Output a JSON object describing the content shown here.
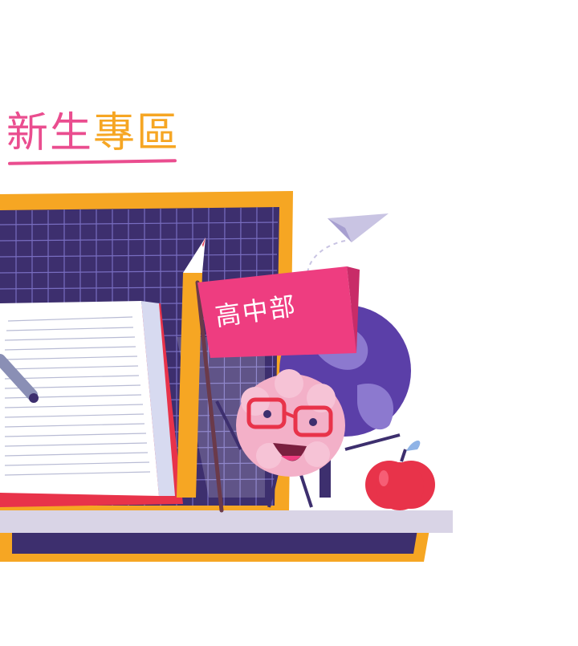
{
  "heading": {
    "part1": "新生",
    "part2": "專區"
  },
  "flag": {
    "label": "高中部"
  },
  "colors": {
    "pink": "#ea4d8f",
    "orange": "#f6a623",
    "board": "#3d2f6e",
    "flag": "#ee3d80"
  },
  "illustration": {
    "icons": [
      "chalkboard-icon",
      "open-book-icon",
      "pencil-icon",
      "flag-icon",
      "brain-mascot-icon",
      "globe-icon",
      "apple-icon",
      "paper-plane-icon"
    ]
  }
}
